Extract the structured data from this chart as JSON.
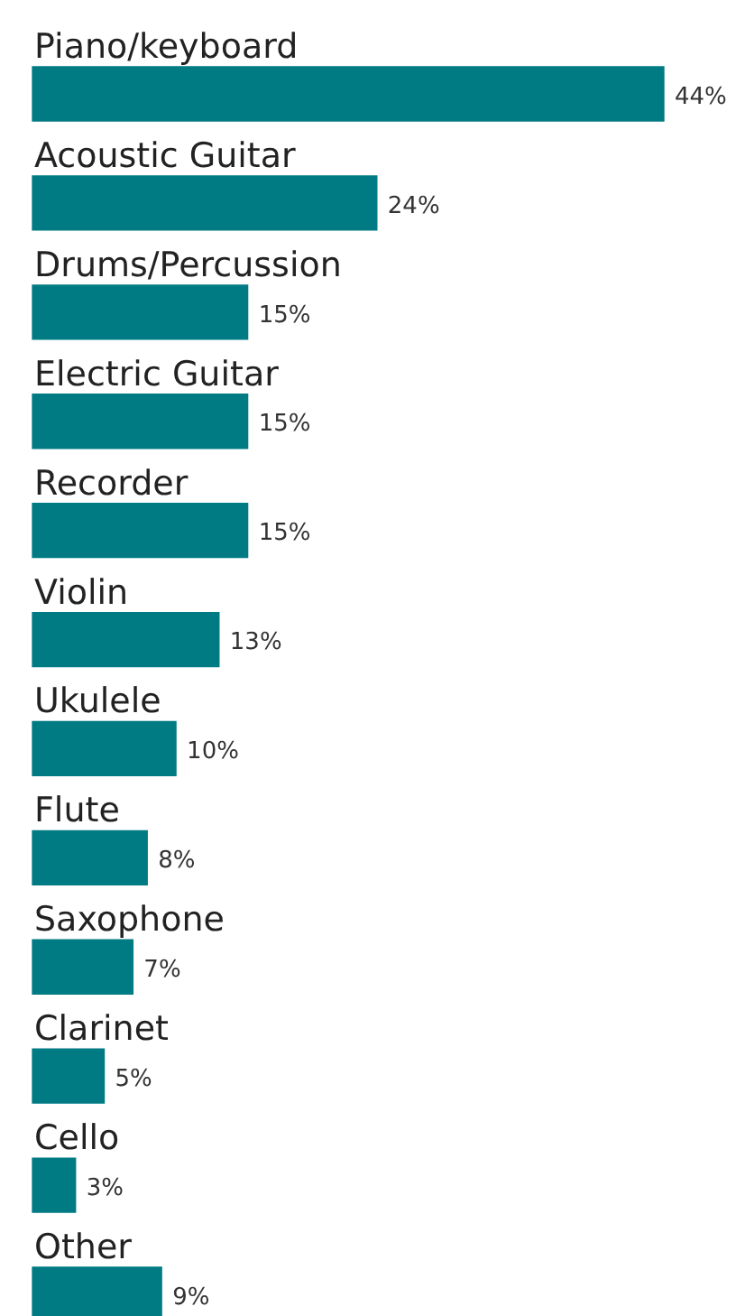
{
  "chart_data": {
    "type": "bar",
    "orientation": "horizontal",
    "categories": [
      "Piano/keyboard",
      "Acoustic Guitar",
      "Drums/Percussion",
      "Electric Guitar",
      "Recorder",
      "Violin",
      "Ukulele",
      "Flute",
      "Saxophone",
      "Clarinet",
      "Cello",
      "Other"
    ],
    "values": [
      44,
      24,
      15,
      15,
      15,
      13,
      10,
      8,
      7,
      5,
      3,
      9
    ],
    "value_labels": [
      "44%",
      "24%",
      "15%",
      "15%",
      "15%",
      "13%",
      "10%",
      "8%",
      "7%",
      "5%",
      "3%",
      "9%"
    ],
    "color": "#007b84",
    "legend": false,
    "tick_labels": false
  }
}
